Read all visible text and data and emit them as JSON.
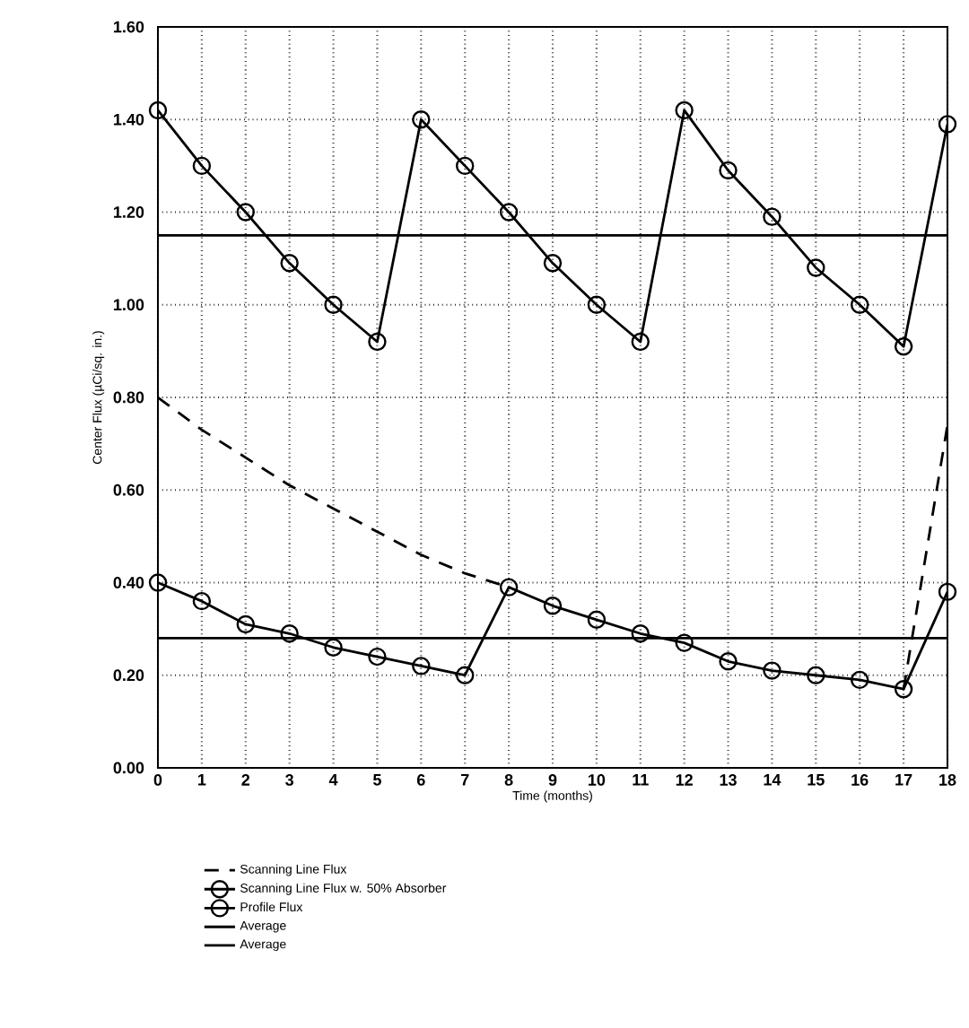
{
  "chart_data": {
    "type": "line",
    "xlabel": "Time (months)",
    "ylabel": "Center Flux (µCi/sq. in.)",
    "x": [
      0,
      1,
      2,
      3,
      4,
      5,
      6,
      7,
      8,
      9,
      10,
      11,
      12,
      13,
      14,
      15,
      16,
      17,
      18
    ],
    "series": [
      {
        "name": "Scanning Line Flux",
        "color": "#000000",
        "line_style": "dashed",
        "marker": "none",
        "values": [
          0.8,
          0.73,
          0.67,
          0.61,
          0.56,
          0.51,
          0.46,
          0.42,
          0.39,
          null,
          null,
          null,
          null,
          null,
          null,
          null,
          null,
          0.17,
          0.74
        ]
      },
      {
        "name": "Scanning Line Flux w. 50% Absorber",
        "color": "#000000",
        "line_style": "solid",
        "marker": "circle",
        "values": [
          0.4,
          0.36,
          0.31,
          0.29,
          0.26,
          0.24,
          0.22,
          0.2,
          0.39,
          0.35,
          0.32,
          0.29,
          0.27,
          0.23,
          0.21,
          0.2,
          0.19,
          0.17,
          0.38
        ]
      },
      {
        "name": "Profile Flux",
        "color": "#000000",
        "line_style": "solid",
        "marker": "circle",
        "values": [
          1.42,
          1.3,
          1.2,
          1.09,
          1.0,
          0.92,
          1.4,
          1.3,
          1.2,
          1.09,
          1.0,
          0.92,
          1.42,
          1.29,
          1.19,
          1.08,
          1.0,
          0.91,
          1.39
        ]
      }
    ],
    "ref_lines": [
      {
        "axis": "y",
        "value": 1.15,
        "label": "Average",
        "color": "#000000"
      },
      {
        "axis": "y",
        "value": 0.28,
        "label": "Average",
        "color": "#000000"
      }
    ],
    "xlim": [
      0,
      18
    ],
    "ylim": [
      0,
      1.6
    ],
    "xticks": [
      0,
      1,
      2,
      3,
      4,
      5,
      6,
      7,
      8,
      9,
      10,
      11,
      12,
      13,
      14,
      15,
      16,
      17,
      18
    ],
    "yticks": [
      {
        "value": 0,
        "label": "0.00"
      },
      {
        "value": 0.2,
        "label": "0.20"
      },
      {
        "value": 0.4,
        "label": "0.40"
      },
      {
        "value": 0.6,
        "label": "0.60"
      },
      {
        "value": 0.8,
        "label": "0.80"
      },
      {
        "value": 1.0,
        "label": "1.00"
      },
      {
        "value": 1.2,
        "label": "1.20"
      },
      {
        "value": 1.4,
        "label": "1.40"
      },
      {
        "value": 1.6,
        "label": "1.60"
      }
    ],
    "grid": true,
    "legend": "bottom"
  }
}
